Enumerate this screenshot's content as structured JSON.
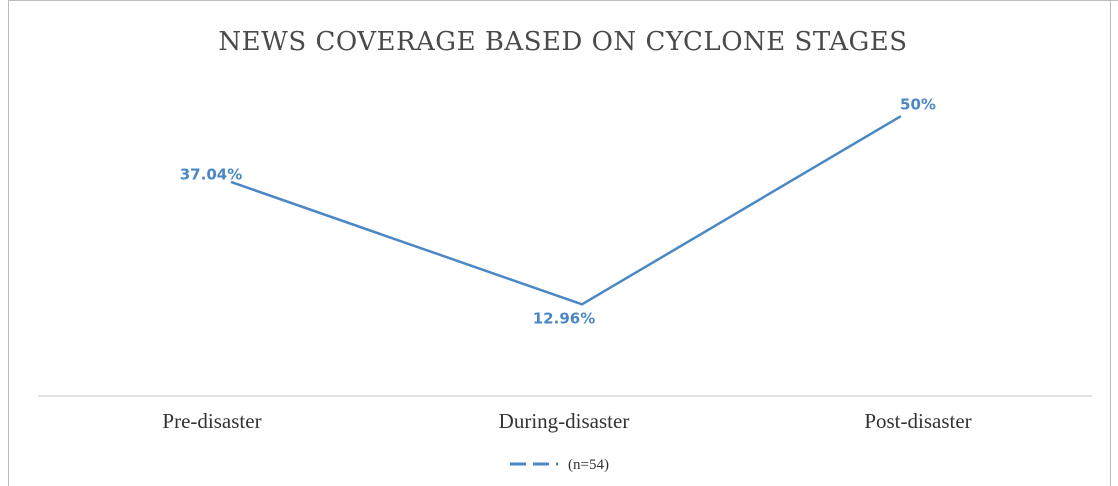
{
  "chart_data": {
    "type": "line",
    "title": "NEWS COVERAGE BASED ON CYCLONE STAGES",
    "xlabel": "",
    "ylabel": "",
    "categories": [
      "Pre-disaster",
      "During-disaster",
      "Post-disaster"
    ],
    "series": [
      {
        "name": "(n=54)",
        "values": [
          37.04,
          12.96,
          50
        ],
        "data_labels": [
          "37.04%",
          "12.96%",
          "50%"
        ]
      }
    ],
    "ylim": [
      0,
      60
    ],
    "grid": false,
    "legend_position": "bottom",
    "line_color": "#4a87c4"
  }
}
